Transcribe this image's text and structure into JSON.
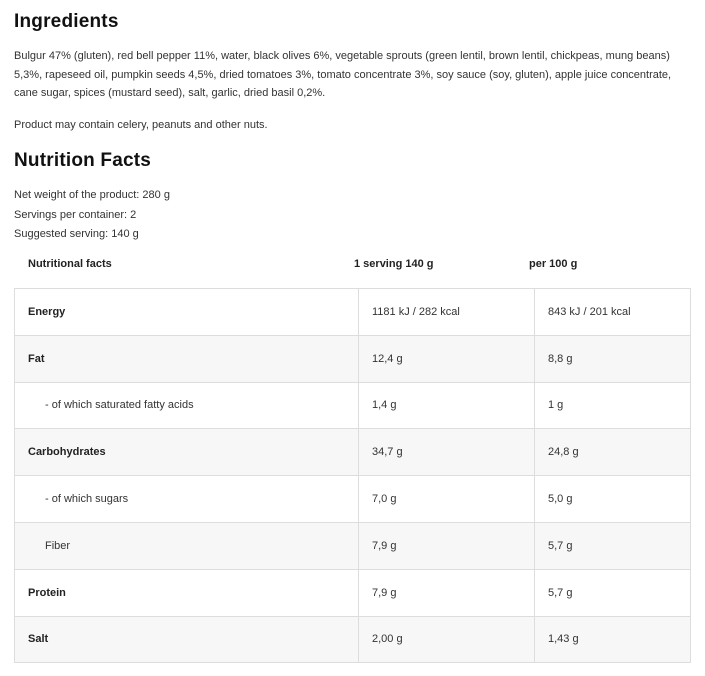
{
  "ingredients": {
    "title": "Ingredients",
    "text": "Bulgur 47% (gluten), red bell pepper 11%, water, black olives 6%, vegetable sprouts (green lentil, brown lentil, chickpeas, mung beans) 5,3%, rapeseed oil, pumpkin seeds 4,5%, dried tomatoes 3%, tomato concentrate 3%, soy sauce (soy, gluten), apple juice concentrate, cane sugar, spices (mustard seed), salt, garlic, dried basil 0,2%.",
    "allergen_note": "Product may contain celery, peanuts and other nuts."
  },
  "nutrition": {
    "title": "Nutrition Facts",
    "net_weight": "Net weight of the product: 280 g",
    "servings": "Servings per container: 2",
    "suggested": "Suggested serving: 140 g",
    "headers": [
      "Nutritional facts",
      "1 serving 140 g",
      "per 100 g"
    ],
    "rows": [
      {
        "name": "Energy",
        "serving": "1181 kJ / 282 kcal",
        "per100": "843 kJ / 201 kcal",
        "bold": true
      },
      {
        "name": "Fat",
        "serving": "12,4 g",
        "per100": "8,8 g",
        "bold": true
      },
      {
        "name": "- of which saturated fatty acids",
        "serving": "1,4 g",
        "per100": "1 g",
        "bold": false
      },
      {
        "name": "Carbohydrates",
        "serving": "34,7 g",
        "per100": "24,8 g",
        "bold": true
      },
      {
        "name": "- of which sugars",
        "serving": "7,0 g",
        "per100": "5,0 g",
        "bold": false
      },
      {
        "name": "Fiber",
        "serving": "7,9 g",
        "per100": "5,7 g",
        "bold": false
      },
      {
        "name": "Protein",
        "serving": "7,9 g",
        "per100": "5,7 g",
        "bold": true
      },
      {
        "name": "Salt",
        "serving": "2,00 g",
        "per100": "1,43 g",
        "bold": true
      }
    ]
  }
}
